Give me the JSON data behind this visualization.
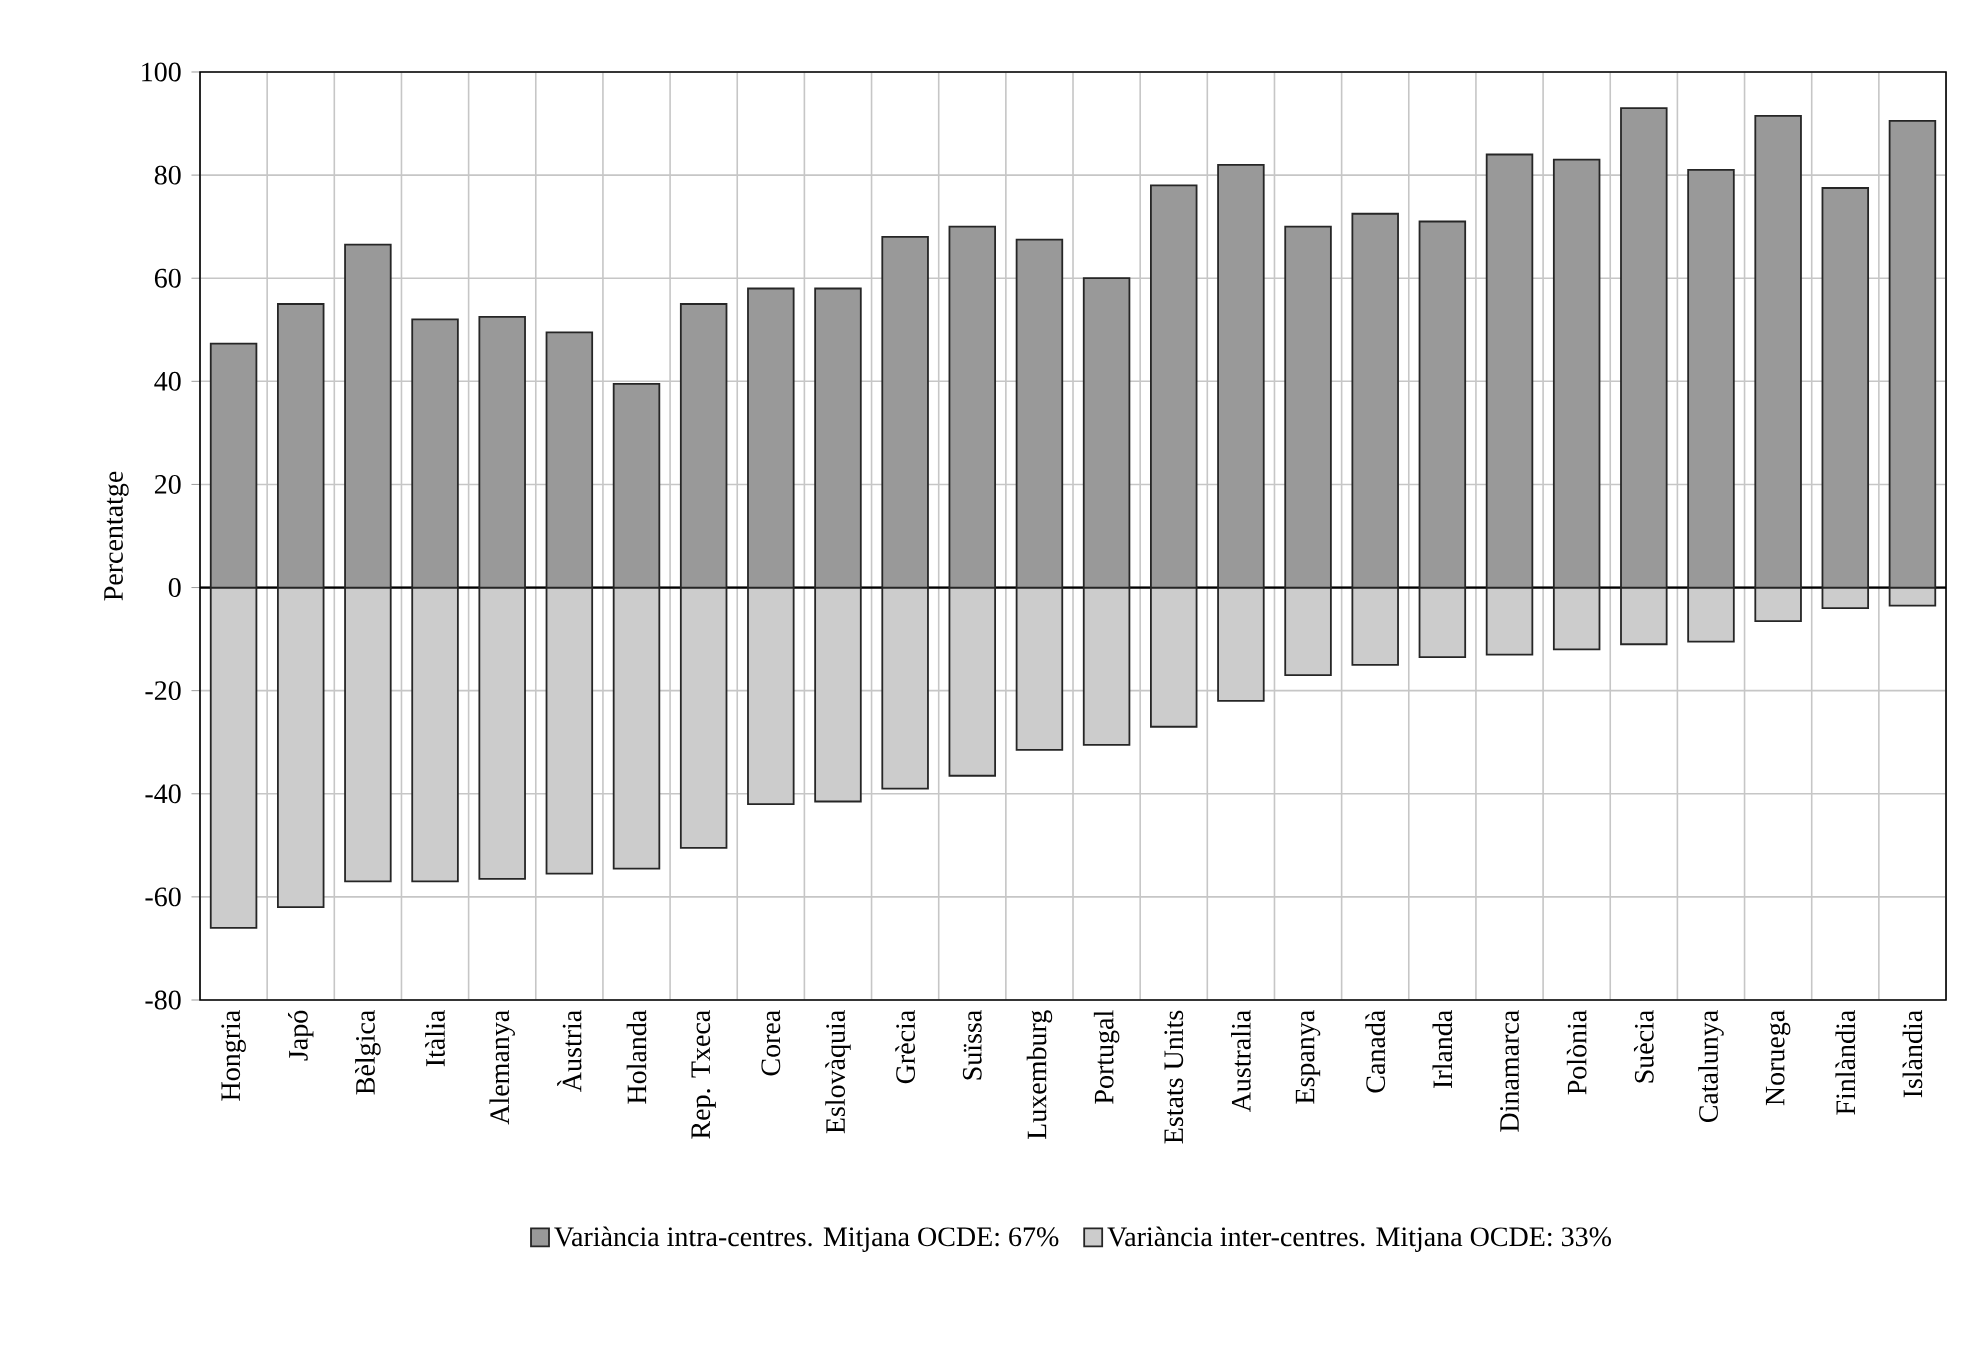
{
  "chart_data": {
    "type": "bar",
    "ylabel": "Percentatge",
    "categories": [
      "Hongria",
      "Japó",
      "Bèlgica",
      "Itàlia",
      "Alemanya",
      "Àustria",
      "Holanda",
      "Rep. Txeca",
      "Corea",
      "Eslovàquia",
      "Grècia",
      "Suïssa",
      "Luxemburg",
      "Portugal",
      "Estats Units",
      "Australia",
      "Espanya",
      "Canadà",
      "Irlanda",
      "Dinamarca",
      "Polònia",
      "Suècia",
      "Catalunya",
      "Noruega",
      "Finlàndia",
      "Islàndia"
    ],
    "series": [
      {
        "name": "Variància intra-centres. Mitjana OCDE: 67%",
        "color": "#999999",
        "values": [
          47.3,
          55,
          66.5,
          52,
          52.5,
          49.5,
          39.5,
          55,
          58,
          58,
          68,
          70,
          67.5,
          60,
          78,
          82,
          70,
          72.5,
          71,
          84,
          83,
          93,
          81,
          91.5,
          77.5,
          90.5
        ]
      },
      {
        "name": "Variància inter-centres. Mitjana OCDE: 33%",
        "color": "#cccccc",
        "values": [
          -66,
          -62,
          -57,
          -57,
          -56.5,
          -55.5,
          -54.5,
          -50.5,
          -42,
          -41.5,
          -39,
          -36.5,
          -31.5,
          -30.5,
          -27,
          -22,
          -17,
          -15,
          -13.5,
          -13,
          -12,
          -11,
          -10.5,
          -6.5,
          -4,
          -3.5
        ]
      }
    ],
    "ylim": [
      -80,
      100
    ],
    "yticks": [
      -80,
      -60,
      -40,
      -20,
      0,
      20,
      40,
      60,
      80,
      100
    ],
    "ref_lines": [
      {
        "axis": "y",
        "value": 0
      }
    ],
    "grid": true,
    "legend": "bottom",
    "stacked": true
  }
}
